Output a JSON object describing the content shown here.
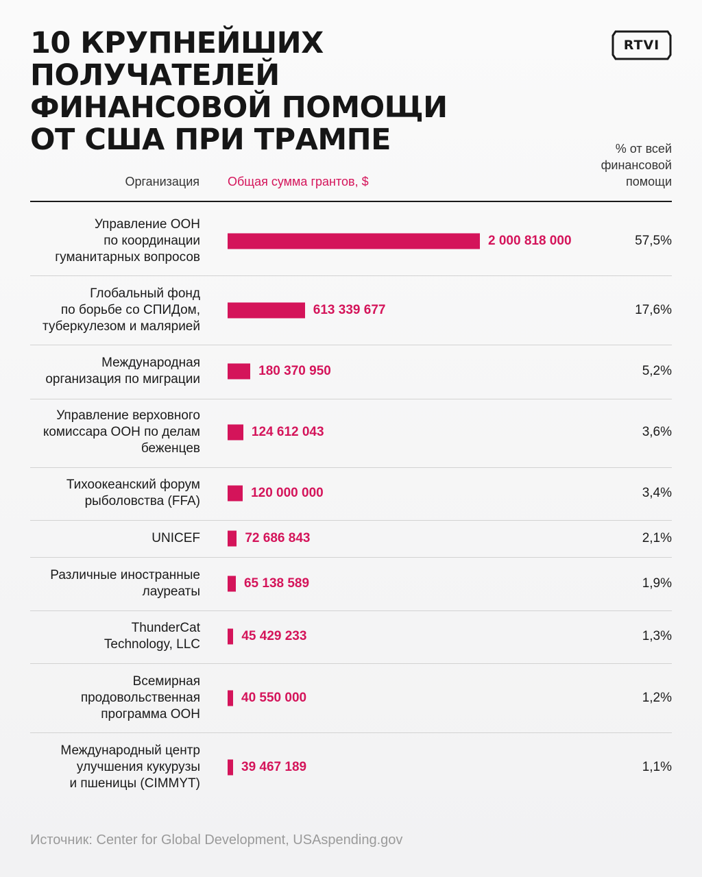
{
  "title_lines": [
    "10 крупнейших получателей",
    "финансовой помощи",
    "от США при Трампе"
  ],
  "logo_text": "RTVI",
  "header": {
    "org": "Организация",
    "sum": "Общая сумма грантов, $",
    "pct_lines": [
      "% от всей",
      "финансовой",
      "помощи"
    ]
  },
  "source": "Источник: Center for Global Development, USAspending.gov",
  "colors": {
    "accent": "#d4145a",
    "text": "#1a1a1a",
    "source": "#9a9a9a"
  },
  "chart_data": {
    "type": "bar",
    "orientation": "horizontal",
    "rows": [
      {
        "name_lines": [
          "Управление ООН",
          "по координации",
          "гуманитарных вопросов"
        ],
        "value": 2000818000,
        "value_label": "2 000 818 000",
        "pct": "57,5%"
      },
      {
        "name_lines": [
          "Глобальный фонд",
          "по борьбе со СПИДом,",
          "туберкулезом и малярией"
        ],
        "value": 613339677,
        "value_label": "613 339 677",
        "pct": "17,6%"
      },
      {
        "name_lines": [
          "Международная",
          "организация по миграции"
        ],
        "value": 180370950,
        "value_label": "180 370 950",
        "pct": "5,2%"
      },
      {
        "name_lines": [
          "Управление верховного",
          "комиссара ООН по делам",
          "беженцев"
        ],
        "value": 124612043,
        "value_label": "124 612 043",
        "pct": "3,6%"
      },
      {
        "name_lines": [
          "Тихоокеанский форум",
          "рыболовства (FFA)"
        ],
        "value": 120000000,
        "value_label": "120 000 000",
        "pct": "3,4%"
      },
      {
        "name_lines": [
          "UNICEF"
        ],
        "value": 72686843,
        "value_label": "72 686 843",
        "pct": "2,1%"
      },
      {
        "name_lines": [
          "Различные иностранные",
          "лауреаты"
        ],
        "value": 65138589,
        "value_label": "65 138 589",
        "pct": "1,9%"
      },
      {
        "name_lines": [
          "ThunderCat",
          "Technology, LLC"
        ],
        "value": 45429233,
        "value_label": "45 429 233",
        "pct": "1,3%"
      },
      {
        "name_lines": [
          "Всемирная",
          "продовольственная",
          "программа ООН"
        ],
        "value": 40550000,
        "value_label": "40 550 000",
        "pct": "1,2%"
      },
      {
        "name_lines": [
          "Международный центр",
          "улучшения кукурузы",
          "и пшеницы (CIMMYT)"
        ],
        "value": 39467189,
        "value_label": "39 467 189",
        "pct": "1,1%"
      }
    ]
  }
}
